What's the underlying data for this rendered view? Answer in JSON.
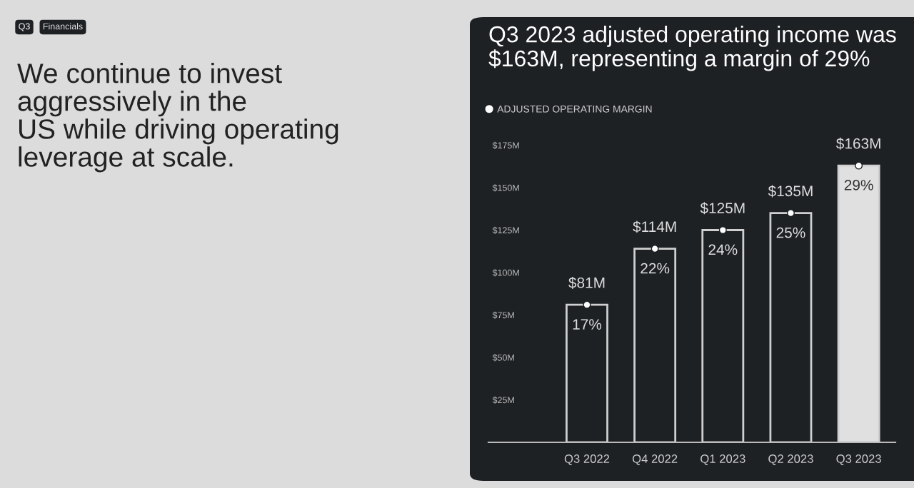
{
  "chart_data": {
    "type": "bar",
    "title": "Q3 2023 adjusted operating income was\n$163M, representing a margin of 29%",
    "annotations": [
      "Q3",
      "Financials",
      "We continue to invest\naggressively in the\nUS while driving operating\nleverage at scale.",
      {
        "text": "17%",
        "x": "Q3 2022",
        "y": 81
      },
      {
        "text": "22%",
        "x": "Q4 2022",
        "y": 114
      },
      {
        "text": "24%",
        "x": "Q1 2023",
        "y": 125
      },
      {
        "text": "25%",
        "x": "Q2 2023",
        "y": 135
      },
      {
        "text": "29%",
        "x": "Q3 2023",
        "y": 163
      }
    ],
    "categories": [
      "Q3 2022",
      "Q4 2022",
      "Q1 2023",
      "Q2 2023",
      "Q3 2023"
    ],
    "ylim": [
      0,
      175
    ],
    "yticks": [
      {
        "value": 25,
        "label": "$25M"
      },
      {
        "value": 50,
        "label": "$50M"
      },
      {
        "value": 75,
        "label": "$75M"
      },
      {
        "value": 100,
        "label": "$100M"
      },
      {
        "value": 125,
        "label": "$125M"
      },
      {
        "value": 150,
        "label": "$150M"
      },
      {
        "value": 175,
        "label": "$175M"
      }
    ],
    "grid": false,
    "legend": "top left",
    "series": [
      {
        "colors": [
          "#1e2124",
          "#1e2124",
          "#1e2124",
          "#1e2124",
          "#e0e0e0"
        ],
        "values": [
          81,
          114,
          125,
          135,
          163
        ],
        "value_labels": [
          "$81M",
          "$114M",
          "$125M",
          "$135M",
          "$163M"
        ]
      },
      {
        "type": "scatter",
        "name": "ADJUSTED OPERATING MARGIN",
        "color": "#ffffff",
        "marker": "circle",
        "values": [
          81,
          114,
          125,
          135,
          163
        ]
      }
    ]
  }
}
